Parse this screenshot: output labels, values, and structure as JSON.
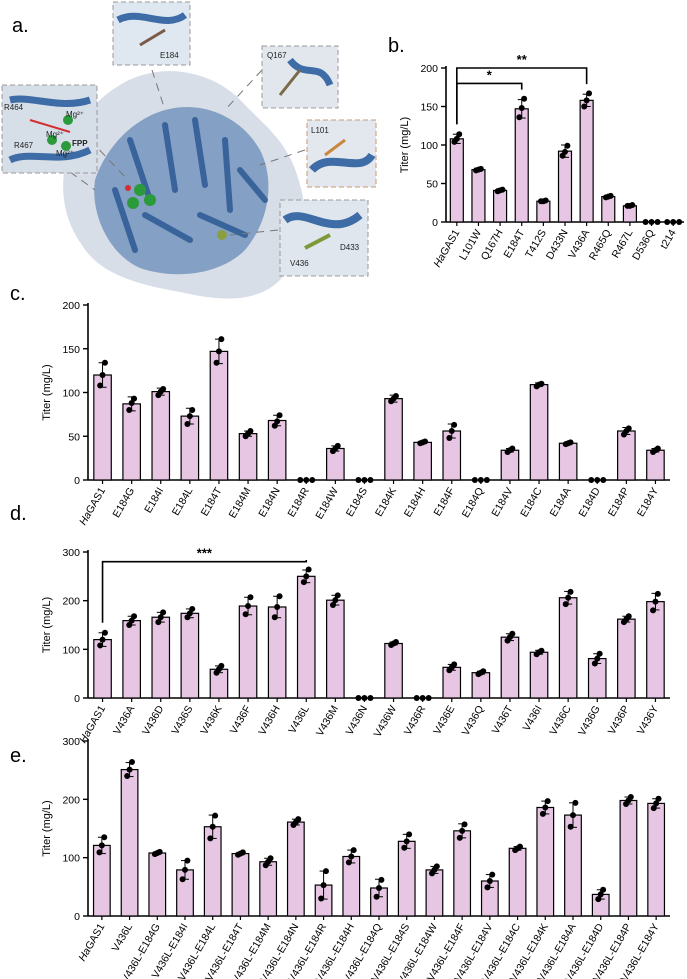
{
  "panel_a": {
    "label": "a.",
    "residue_labels": [
      "E184",
      "Q167",
      "L101",
      "D433",
      "V436",
      "R464",
      "R467",
      "Mg²⁺",
      "Mg²⁺",
      "Mg²⁺",
      "FPP"
    ]
  },
  "chart_data": [
    {
      "panel": "b.",
      "type": "bar",
      "ylabel": "Titer (mg/L)",
      "ylim": [
        0,
        200
      ],
      "yticks": [
        0,
        50,
        100,
        150,
        200
      ],
      "categories": [
        "HaGAS1",
        "L101W",
        "Q167H",
        "E184T",
        "T412S",
        "D433N",
        "V436A",
        "R465Q",
        "R467L",
        "D536Q",
        "t214"
      ],
      "italic_prefix": "Ha",
      "values": [
        108,
        68,
        41,
        147,
        27,
        92,
        158,
        33,
        21,
        0,
        0
      ],
      "errors": [
        6,
        2,
        2,
        12,
        1,
        8,
        8,
        1,
        1,
        0,
        0
      ],
      "points": [
        [
          104,
          108,
          114
        ],
        [
          67,
          68,
          69
        ],
        [
          40,
          41,
          42
        ],
        [
          136,
          148,
          160
        ],
        [
          27,
          27,
          28
        ],
        [
          86,
          91,
          99
        ],
        [
          150,
          158,
          167
        ],
        [
          32,
          33,
          34
        ],
        [
          21,
          21,
          22
        ],
        [
          0,
          0,
          0
        ],
        [
          0,
          0,
          0
        ]
      ],
      "bar_color": "#e7c6e4",
      "significance": [
        {
          "from": 0,
          "to": 3,
          "label": "*",
          "level": 180
        },
        {
          "from": 0,
          "to": 6,
          "label": "**",
          "level": 200
        }
      ]
    },
    {
      "panel": "c.",
      "type": "bar",
      "ylabel": "Titer (mg/L)",
      "ylim": [
        0,
        200
      ],
      "yticks": [
        0,
        50,
        100,
        150,
        200
      ],
      "categories": [
        "HaGAS1",
        "E184G",
        "E184I",
        "E184L",
        "E184T",
        "E184M",
        "E184N",
        "E184R",
        "E184W",
        "E184S",
        "E184K",
        "E184H",
        "E184F",
        "E184Q",
        "E184V",
        "E184C",
        "E184A",
        "E184D",
        "E184P",
        "E184Y"
      ],
      "italic_prefix": "Ha",
      "values": [
        120,
        87,
        101,
        73,
        147,
        53,
        68,
        0,
        36,
        0,
        93,
        43,
        56,
        0,
        34,
        109,
        42,
        0,
        56,
        34
      ],
      "errors": [
        14,
        8,
        4,
        9,
        14,
        3,
        6,
        0,
        3,
        0,
        4,
        1,
        8,
        0,
        2,
        2,
        1,
        0,
        4,
        2
      ],
      "points": [
        [
          108,
          120,
          134
        ],
        [
          80,
          88,
          93
        ],
        [
          97,
          101,
          104
        ],
        [
          64,
          73,
          80
        ],
        [
          134,
          147,
          161
        ],
        [
          50,
          53,
          56
        ],
        [
          62,
          67,
          74
        ],
        [
          0,
          0,
          0
        ],
        [
          33,
          36,
          39
        ],
        [
          0,
          0,
          0
        ],
        [
          90,
          93,
          96
        ],
        [
          42,
          43,
          44
        ],
        [
          48,
          56,
          63
        ],
        [
          0,
          0,
          0
        ],
        [
          32,
          34,
          36
        ],
        [
          107,
          109,
          110
        ],
        [
          41,
          42,
          43
        ],
        [
          0,
          0,
          0
        ],
        [
          52,
          56,
          59
        ],
        [
          32,
          34,
          36
        ]
      ],
      "bar_color": "#e7c6e4",
      "significance": []
    },
    {
      "panel": "d.",
      "type": "bar",
      "ylabel": "Titer (mg/L)",
      "ylim": [
        0,
        300
      ],
      "yticks": [
        0,
        100,
        200,
        300
      ],
      "categories": [
        "HaGAS1",
        "V436A",
        "V436D",
        "V436S",
        "V436K",
        "V436F",
        "V436H",
        "V436L",
        "V436M",
        "V436N",
        "V436W",
        "V436R",
        "V436E",
        "V436Q",
        "V436T",
        "V436I",
        "V436C",
        "V436G",
        "V436P",
        "V436Y"
      ],
      "italic_prefix": "Ha",
      "values": [
        120,
        159,
        166,
        174,
        59,
        189,
        187,
        250,
        201,
        0,
        112,
        0,
        63,
        52,
        125,
        94,
        206,
        81,
        162,
        198
      ],
      "errors": [
        14,
        9,
        10,
        9,
        7,
        18,
        22,
        13,
        10,
        0,
        3,
        0,
        6,
        3,
        7,
        4,
        13,
        10,
        6,
        17
      ],
      "points": [
        [
          108,
          120,
          134
        ],
        [
          150,
          159,
          168
        ],
        [
          156,
          166,
          176
        ],
        [
          166,
          174,
          183
        ],
        [
          52,
          59,
          66
        ],
        [
          172,
          189,
          207
        ],
        [
          166,
          187,
          209
        ],
        [
          238,
          250,
          264
        ],
        [
          191,
          201,
          211
        ],
        [
          0,
          0,
          0
        ],
        [
          109,
          112,
          115
        ],
        [
          0,
          0,
          0
        ],
        [
          57,
          63,
          69
        ],
        [
          49,
          52,
          55
        ],
        [
          118,
          125,
          132
        ],
        [
          90,
          94,
          97
        ],
        [
          193,
          206,
          218
        ],
        [
          71,
          81,
          91
        ],
        [
          156,
          162,
          168
        ],
        [
          180,
          198,
          214
        ]
      ],
      "bar_color": "#e7c6e4",
      "significance": [
        {
          "from": 0,
          "to": 7,
          "label": "***",
          "level": 280
        }
      ]
    },
    {
      "panel": "e.",
      "type": "bar",
      "ylabel": "Titer (mg/L)",
      "ylim": [
        0,
        300
      ],
      "yticks": [
        0,
        100,
        200,
        300
      ],
      "categories": [
        "HaGAS1",
        "V436L",
        "V436L-E184G",
        "V436L-E184I",
        "V436L-E184L",
        "V436L-E184T",
        "V436L-E184M",
        "V436L-E184N",
        "V436L-E184R",
        "V436L-E184H",
        "V436L-E184Q",
        "V436L-E184S",
        "V436L-E184W",
        "V436L-E184F",
        "V436L-E184V",
        "V436L-E184C",
        "V436L-E184K",
        "V436L-E184A",
        "V436L-E184D",
        "V436L-E184P",
        "V436L-E184Y"
      ],
      "italic_prefix": "Ha",
      "values": [
        121,
        251,
        108,
        79,
        153,
        107,
        93,
        161,
        53,
        102,
        48,
        128,
        79,
        146,
        60,
        116,
        186,
        173,
        37,
        198,
        193
      ],
      "errors": [
        14,
        12,
        2,
        16,
        20,
        2,
        6,
        5,
        24,
        11,
        15,
        12,
        6,
        12,
        11,
        3,
        11,
        21,
        8,
        6,
        8
      ],
      "points": [
        [
          109,
          121,
          135
        ],
        [
          240,
          251,
          264
        ],
        [
          106,
          108,
          110
        ],
        [
          63,
          79,
          95
        ],
        [
          133,
          153,
          172
        ],
        [
          105,
          107,
          109
        ],
        [
          87,
          93,
          99
        ],
        [
          156,
          161,
          166
        ],
        [
          30,
          53,
          77
        ],
        [
          92,
          102,
          113
        ],
        [
          33,
          48,
          62
        ],
        [
          117,
          128,
          140
        ],
        [
          73,
          79,
          85
        ],
        [
          134,
          146,
          157
        ],
        [
          49,
          60,
          71
        ],
        [
          113,
          116,
          119
        ],
        [
          175,
          186,
          197
        ],
        [
          153,
          173,
          194
        ],
        [
          29,
          37,
          45
        ],
        [
          192,
          198,
          204
        ],
        [
          185,
          193,
          201
        ]
      ],
      "bar_color": "#e7c6e4",
      "significance": []
    }
  ]
}
